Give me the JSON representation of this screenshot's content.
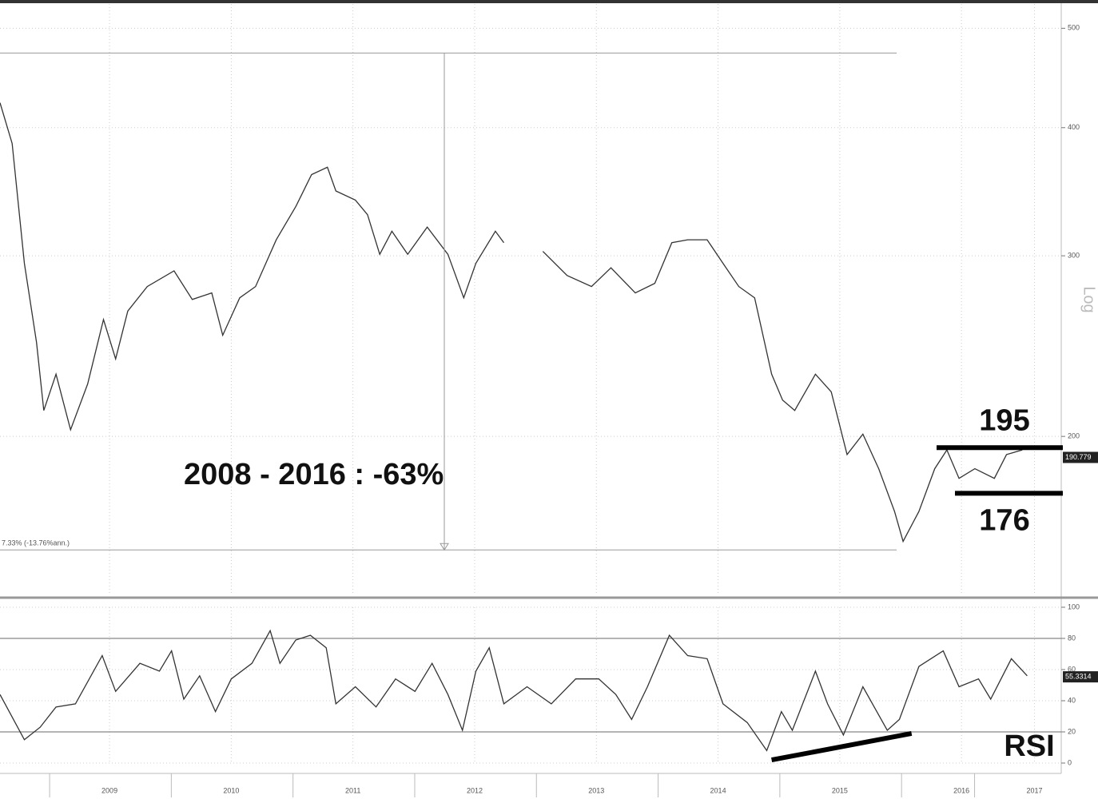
{
  "chart_data": [
    {
      "type": "line",
      "log_scale": true,
      "color": "#333333",
      "y_label": "Log",
      "xlim": [
        2008.6,
        2017.3
      ],
      "xticks": [
        {
          "value": 2009.5,
          "label": "2009"
        },
        {
          "value": 2010.5,
          "label": "2010"
        },
        {
          "value": 2011.5,
          "label": "2011"
        },
        {
          "value": 2012.5,
          "label": "2012"
        },
        {
          "value": 2013.5,
          "label": "2013"
        },
        {
          "value": 2014.5,
          "label": "2014"
        },
        {
          "value": 2015.5,
          "label": "2015"
        },
        {
          "value": 2016.5,
          "label": "2016"
        },
        {
          "value": 2017.1,
          "label": "2017"
        }
      ],
      "ylim": [
        140,
        528
      ],
      "yticks": [
        200,
        300,
        400,
        500
      ],
      "grid": true,
      "x": [
        2008.6,
        2008.7,
        2008.8,
        2008.9,
        2008.96,
        2009.06,
        2009.18,
        2009.32,
        2009.45,
        2009.55,
        2009.65,
        2009.81,
        2010.03,
        2010.18,
        2010.34,
        2010.43,
        2010.57,
        2010.7,
        2010.87,
        2011.03,
        2011.16,
        2011.29,
        2011.36,
        2011.52,
        2011.62,
        2011.72,
        2011.82,
        2011.95,
        2012.11,
        2012.28,
        2012.41,
        2012.51,
        2012.67,
        2012.74,
        2012.9,
        2013.06,
        2013.26,
        2013.46,
        2013.62,
        2013.82,
        2013.98,
        2014.12,
        2014.25,
        2014.41,
        2014.54,
        2014.67,
        2014.8,
        2014.94,
        2015.03,
        2015.13,
        2015.3,
        2015.43,
        2015.56,
        2015.69,
        2015.82,
        2015.95,
        2016.02,
        2016.15,
        2016.28,
        2016.38,
        2016.48,
        2016.61,
        2016.77,
        2016.87,
        2017.0
      ],
      "values": [
        423,
        386,
        295,
        247,
        212,
        230,
        203,
        225,
        260,
        238,
        265,
        280,
        290,
        272,
        276,
        251,
        273,
        280,
        311,
        335,
        360,
        366,
        347,
        340,
        329,
        301,
        317,
        301,
        320,
        301,
        273,
        295,
        317,
        309,
        null,
        303,
        287,
        280,
        292,
        276,
        282,
        309,
        311,
        311,
        295,
        280,
        273,
        230,
        217,
        212,
        230,
        221,
        192,
        201,
        186,
        169,
        158,
        169,
        186,
        194,
        182,
        186,
        182,
        192,
        194
      ],
      "annotation": "2008 - 2016 : -63%",
      "levels": [
        195,
        176
      ],
      "measure": {
        "high": 473,
        "low": 155,
        "label": "7.33% (-13.76%ann.)"
      },
      "last_value": 190.779
    },
    {
      "type": "line",
      "color": "#333333",
      "xlim": [
        2008.6,
        2017.3
      ],
      "ylim": [
        0,
        100
      ],
      "yticks": [
        0,
        20,
        40,
        60,
        80,
        100
      ],
      "grid": true,
      "reference_lines": [
        80,
        20
      ],
      "label": "RSI",
      "x": [
        2008.6,
        2008.8,
        2008.93,
        2009.06,
        2009.22,
        2009.44,
        2009.55,
        2009.75,
        2009.91,
        2010.01,
        2010.11,
        2010.24,
        2010.37,
        2010.5,
        2010.67,
        2010.82,
        2010.9,
        2011.03,
        2011.15,
        2011.28,
        2011.36,
        2011.52,
        2011.69,
        2011.85,
        2012.01,
        2012.15,
        2012.28,
        2012.4,
        2012.51,
        2012.62,
        2012.74,
        2012.93,
        2013.13,
        2013.33,
        2013.52,
        2013.66,
        2013.79,
        2013.92,
        2014.1,
        2014.25,
        2014.41,
        2014.54,
        2014.74,
        2014.9,
        2015.02,
        2015.11,
        2015.3,
        2015.4,
        2015.53,
        2015.69,
        2015.89,
        2015.99,
        2016.15,
        2016.35,
        2016.48,
        2016.64,
        2016.74,
        2016.91,
        2017.04
      ],
      "values": [
        44,
        15,
        23,
        36,
        38,
        69,
        46,
        64,
        59,
        72,
        41,
        56,
        33,
        54,
        64,
        85,
        64,
        79,
        82,
        74,
        38,
        49,
        36,
        54,
        46,
        64,
        44,
        21,
        59,
        74,
        38,
        49,
        38,
        54,
        54,
        44,
        28,
        49,
        82,
        69,
        67,
        38,
        26,
        8,
        33,
        21,
        59,
        38,
        18,
        49,
        21,
        28,
        62,
        72,
        49,
        54,
        41,
        67,
        56
      ],
      "trendline": {
        "x": [
          2014.94,
          2016.09
        ],
        "values": [
          2,
          19
        ]
      },
      "last_value": 55.3314
    }
  ]
}
